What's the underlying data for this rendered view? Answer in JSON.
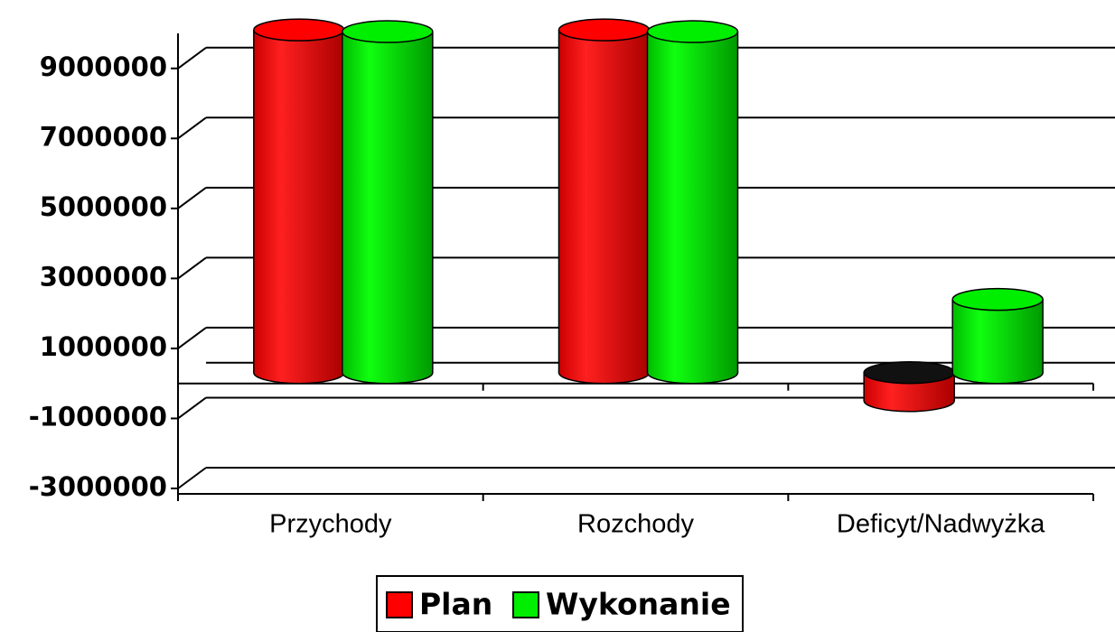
{
  "chart_data": {
    "type": "bar3d",
    "categories": [
      "Przychody",
      "Rozchody",
      "Deficyt/Nadwyżka"
    ],
    "series": [
      {
        "name": "Plan",
        "color": "#ff0000",
        "values": [
          10100000,
          10100000,
          -800000
        ]
      },
      {
        "name": "Wykonanie",
        "color": "#00ee00",
        "values": [
          10050000,
          10050000,
          2400000
        ]
      }
    ],
    "ylim": [
      -3000000,
      10000000
    ],
    "yticks": [
      -3000000,
      -1000000,
      1000000,
      3000000,
      5000000,
      7000000,
      9000000
    ],
    "grid": true,
    "legend": "bottom"
  }
}
